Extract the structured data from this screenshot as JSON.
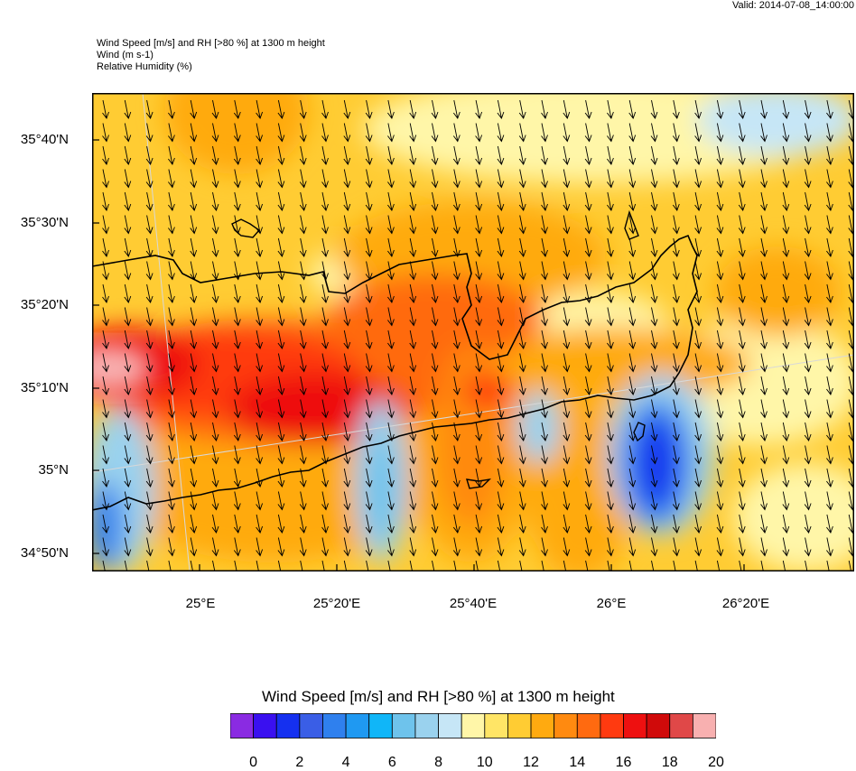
{
  "valid": "Valid: 2014-07-08_14:00:00",
  "titles": {
    "line1": "Wind Speed [m/s] and RH [>80 %] at 1300 m height",
    "line2": "Wind   (m s-1)",
    "line3": "Relative Humidity    (%)"
  },
  "lat_labels": [
    "35°40'N",
    "35°30'N",
    "35°20'N",
    "35°10'N",
    "35°N",
    "34°50'N"
  ],
  "lon_labels": [
    "25°E",
    "25°20'E",
    "25°40'E",
    "26°E",
    "26°20'E"
  ],
  "colorbar": {
    "title": "Wind Speed [m/s] and RH [>80 %] at 1300 m height",
    "labels": [
      "0",
      "2",
      "4",
      "6",
      "8",
      "10",
      "12",
      "14",
      "16",
      "18",
      "20"
    ],
    "colors": [
      "#8a2be2",
      "#3a10f0",
      "#1530f0",
      "#3a5ee6",
      "#2f80ee",
      "#1f99f2",
      "#10b6f8",
      "#6ec3ec",
      "#9ad2ee",
      "#c6e6f6",
      "#fff6a8",
      "#ffe566",
      "#ffcc33",
      "#ffaa10",
      "#ff8a10",
      "#ff6a10",
      "#ff3a10",
      "#ee1010",
      "#d00a0a",
      "#e04848",
      "#f8b0b0"
    ]
  },
  "colors": {
    "background": "#ffffff",
    "base_field": "#ffcc33"
  }
}
